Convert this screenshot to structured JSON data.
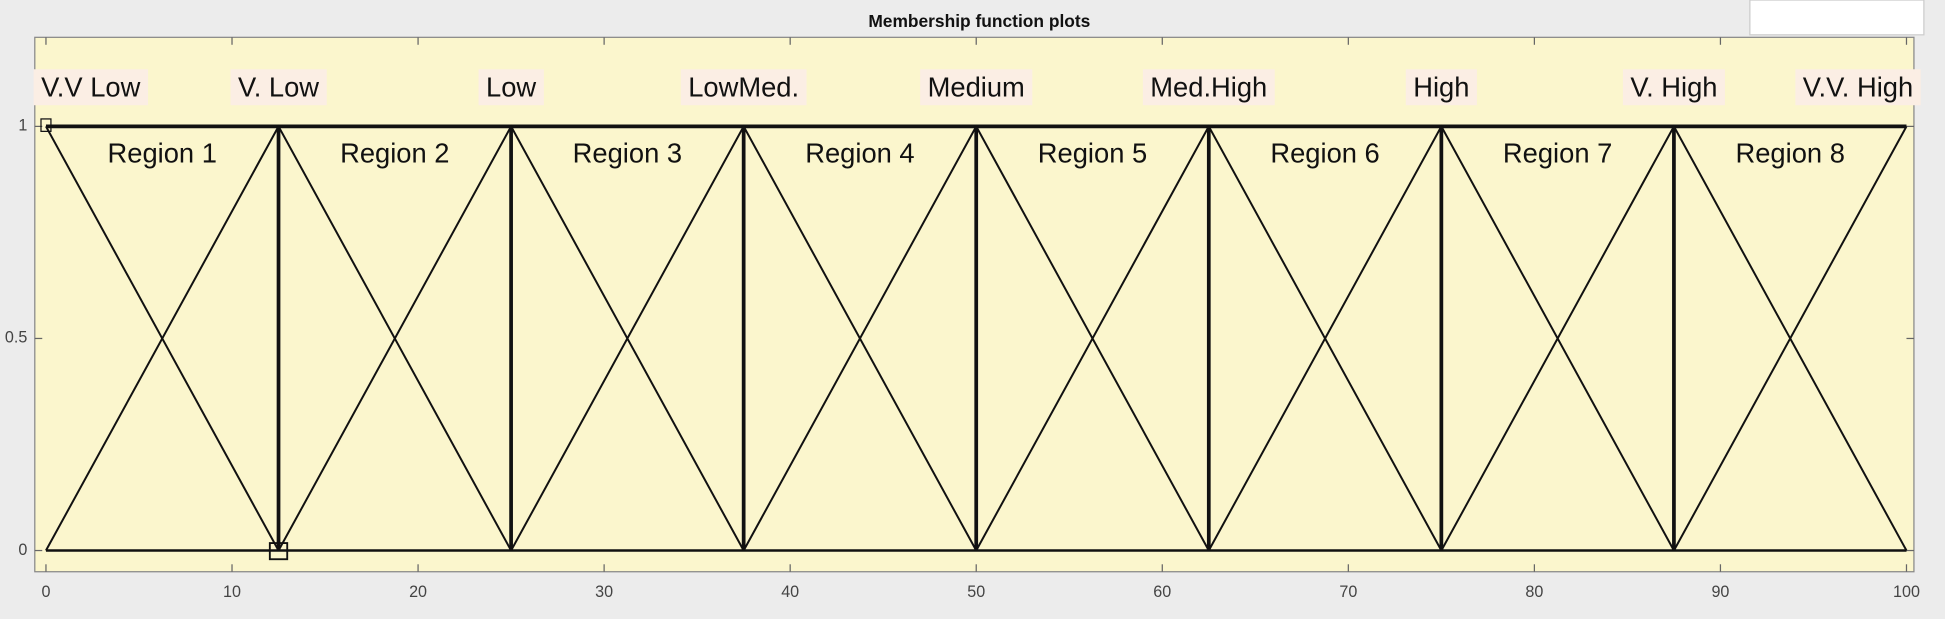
{
  "chart_data": {
    "type": "membership",
    "title": "Membership function plots",
    "series": [
      {
        "name": "V.V Low",
        "color": "#111111",
        "x": [
          0,
          12.5
        ],
        "values": [
          1,
          0
        ]
      },
      {
        "name": "V. Low",
        "color": "#111111",
        "x": [
          0,
          12.5,
          25
        ],
        "values": [
          0,
          1,
          0
        ]
      },
      {
        "name": "Low",
        "color": "#111111",
        "x": [
          12.5,
          25,
          37.5
        ],
        "values": [
          0,
          1,
          0
        ]
      },
      {
        "name": "LowMed.",
        "color": "#111111",
        "x": [
          25,
          37.5,
          50
        ],
        "values": [
          0,
          1,
          0
        ]
      },
      {
        "name": "Medium",
        "color": "#111111",
        "x": [
          37.5,
          50,
          62.5
        ],
        "values": [
          0,
          1,
          0
        ]
      },
      {
        "name": "Med.High",
        "color": "#111111",
        "x": [
          50,
          62.5,
          75
        ],
        "values": [
          0,
          1,
          0
        ]
      },
      {
        "name": "High",
        "color": "#111111",
        "x": [
          62.5,
          75,
          87.5
        ],
        "values": [
          0,
          1,
          0
        ]
      },
      {
        "name": "V. High",
        "color": "#111111",
        "x": [
          75,
          87.5,
          100
        ],
        "values": [
          0,
          1,
          0
        ]
      },
      {
        "name": "V.V. High",
        "color": "#111111",
        "x": [
          87.5,
          100
        ],
        "values": [
          0,
          1
        ]
      }
    ],
    "regions": [
      "Region 1",
      "Region 2",
      "Region 3",
      "Region 4",
      "Region 5",
      "Region 6",
      "Region 7",
      "Region 8"
    ],
    "xlim": [
      -0.6,
      100.4
    ],
    "ylim": [
      -0.05,
      1.21
    ],
    "xticks": [
      0,
      10,
      20,
      30,
      40,
      50,
      60,
      70,
      80,
      90,
      100
    ],
    "yticks": [
      0,
      0.5,
      1
    ],
    "background": "#fbf6cd"
  }
}
